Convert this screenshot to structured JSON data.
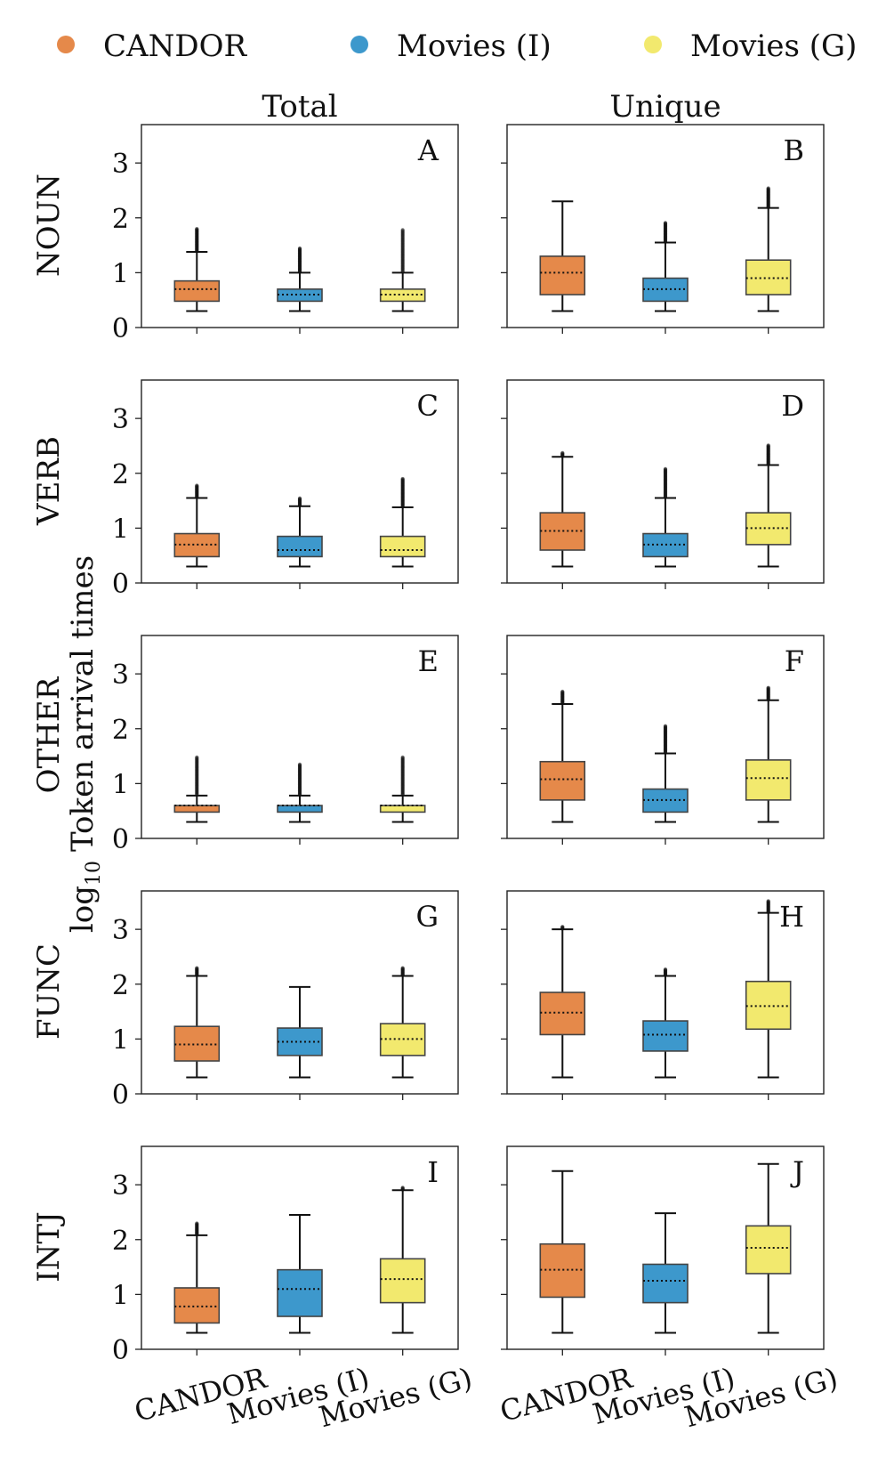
{
  "legend": [
    {
      "label": "CANDOR",
      "color": "#e5894a"
    },
    {
      "label": "Movies (I)",
      "color": "#3d98cc"
    },
    {
      "label": "Movies (G)",
      "color": "#f2e96e"
    }
  ],
  "y_label": "log10 Token arrival times",
  "y_label_main": "Token arrival times",
  "y_label_prefix": "log",
  "y_label_sub": "10",
  "columns": [
    "Total",
    "Unique"
  ],
  "rows": [
    "NOUN",
    "VERB",
    "OTHER",
    "FUNC",
    "INTJ"
  ],
  "chart_data": {
    "type": "box",
    "ylim": [
      0,
      3.7
    ],
    "yticks": [
      "0",
      "1",
      "2",
      "3"
    ],
    "categories": [
      "CANDOR",
      "Movies (I)",
      "Movies (G)"
    ],
    "panels": [
      {
        "letter": "A",
        "row": "NOUN",
        "column": "Total",
        "boxes": [
          {
            "lw": 0.3,
            "q1": 0.48,
            "median": 0.7,
            "q3": 0.85,
            "uw": 1.38,
            "fmax": 1.8
          },
          {
            "lw": 0.3,
            "q1": 0.48,
            "median": 0.6,
            "q3": 0.7,
            "uw": 1.0,
            "fmax": 1.45
          },
          {
            "lw": 0.3,
            "q1": 0.48,
            "median": 0.6,
            "q3": 0.7,
            "uw": 1.0,
            "fmax": 1.78
          }
        ]
      },
      {
        "letter": "B",
        "row": "NOUN",
        "column": "Unique",
        "boxes": [
          {
            "lw": 0.3,
            "q1": 0.6,
            "median": 1.0,
            "q3": 1.3,
            "uw": 2.3,
            "fmax": null
          },
          {
            "lw": 0.3,
            "q1": 0.48,
            "median": 0.7,
            "q3": 0.9,
            "uw": 1.55,
            "fmax": 1.92
          },
          {
            "lw": 0.3,
            "q1": 0.6,
            "median": 0.9,
            "q3": 1.23,
            "uw": 2.18,
            "fmax": 2.55
          }
        ]
      },
      {
        "letter": "C",
        "row": "VERB",
        "column": "Total",
        "boxes": [
          {
            "lw": 0.3,
            "q1": 0.48,
            "median": 0.7,
            "q3": 0.9,
            "uw": 1.55,
            "fmax": 1.78
          },
          {
            "lw": 0.3,
            "q1": 0.48,
            "median": 0.6,
            "q3": 0.85,
            "uw": 1.4,
            "fmax": 1.55
          },
          {
            "lw": 0.3,
            "q1": 0.48,
            "median": 0.6,
            "q3": 0.85,
            "uw": 1.38,
            "fmax": 1.9
          }
        ]
      },
      {
        "letter": "D",
        "row": "VERB",
        "column": "Unique",
        "boxes": [
          {
            "lw": 0.3,
            "q1": 0.6,
            "median": 0.95,
            "q3": 1.28,
            "uw": 2.3,
            "fmax": 2.38
          },
          {
            "lw": 0.3,
            "q1": 0.48,
            "median": 0.7,
            "q3": 0.9,
            "uw": 1.55,
            "fmax": 2.08
          },
          {
            "lw": 0.3,
            "q1": 0.7,
            "median": 1.0,
            "q3": 1.28,
            "uw": 2.15,
            "fmax": 2.52
          }
        ]
      },
      {
        "letter": "E",
        "row": "OTHER",
        "column": "Total",
        "boxes": [
          {
            "lw": 0.3,
            "q1": 0.48,
            "median": 0.6,
            "q3": 0.6,
            "uw": 0.78,
            "fmax": 1.48
          },
          {
            "lw": 0.3,
            "q1": 0.48,
            "median": 0.6,
            "q3": 0.6,
            "uw": 0.78,
            "fmax": 1.35
          },
          {
            "lw": 0.3,
            "q1": 0.48,
            "median": 0.6,
            "q3": 0.6,
            "uw": 0.78,
            "fmax": 1.48
          }
        ]
      },
      {
        "letter": "F",
        "row": "OTHER",
        "column": "Unique",
        "boxes": [
          {
            "lw": 0.3,
            "q1": 0.7,
            "median": 1.08,
            "q3": 1.4,
            "uw": 2.45,
            "fmax": 2.68
          },
          {
            "lw": 0.3,
            "q1": 0.48,
            "median": 0.7,
            "q3": 0.9,
            "uw": 1.55,
            "fmax": 2.05
          },
          {
            "lw": 0.3,
            "q1": 0.7,
            "median": 1.1,
            "q3": 1.43,
            "uw": 2.52,
            "fmax": 2.75
          }
        ]
      },
      {
        "letter": "G",
        "row": "FUNC",
        "column": "Total",
        "boxes": [
          {
            "lw": 0.3,
            "q1": 0.6,
            "median": 0.9,
            "q3": 1.23,
            "uw": 2.15,
            "fmax": 2.3
          },
          {
            "lw": 0.3,
            "q1": 0.7,
            "median": 0.95,
            "q3": 1.2,
            "uw": 1.95,
            "fmax": null
          },
          {
            "lw": 0.3,
            "q1": 0.7,
            "median": 1.0,
            "q3": 1.28,
            "uw": 2.15,
            "fmax": 2.3
          }
        ]
      },
      {
        "letter": "H",
        "row": "FUNC",
        "column": "Unique",
        "boxes": [
          {
            "lw": 0.3,
            "q1": 1.08,
            "median": 1.48,
            "q3": 1.85,
            "uw": 3.0,
            "fmax": 3.05
          },
          {
            "lw": 0.3,
            "q1": 0.78,
            "median": 1.08,
            "q3": 1.33,
            "uw": 2.15,
            "fmax": 2.28
          },
          {
            "lw": 0.3,
            "q1": 1.18,
            "median": 1.6,
            "q3": 2.05,
            "uw": 3.3,
            "fmax": 3.52
          }
        ]
      },
      {
        "letter": "I",
        "row": "INTJ",
        "column": "Total",
        "boxes": [
          {
            "lw": 0.3,
            "q1": 0.48,
            "median": 0.78,
            "q3": 1.12,
            "uw": 2.08,
            "fmax": 2.3
          },
          {
            "lw": 0.3,
            "q1": 0.6,
            "median": 1.1,
            "q3": 1.45,
            "uw": 2.45,
            "fmax": null
          },
          {
            "lw": 0.3,
            "q1": 0.85,
            "median": 1.28,
            "q3": 1.65,
            "uw": 2.9,
            "fmax": 2.95
          }
        ]
      },
      {
        "letter": "J",
        "row": "INTJ",
        "column": "Unique",
        "boxes": [
          {
            "lw": 0.3,
            "q1": 0.95,
            "median": 1.45,
            "q3": 1.92,
            "uw": 3.25,
            "fmax": null
          },
          {
            "lw": 0.3,
            "q1": 0.85,
            "median": 1.25,
            "q3": 1.55,
            "uw": 2.48,
            "fmax": null
          },
          {
            "lw": 0.3,
            "q1": 1.38,
            "median": 1.85,
            "q3": 2.25,
            "uw": 3.38,
            "fmax": null
          }
        ]
      }
    ]
  }
}
